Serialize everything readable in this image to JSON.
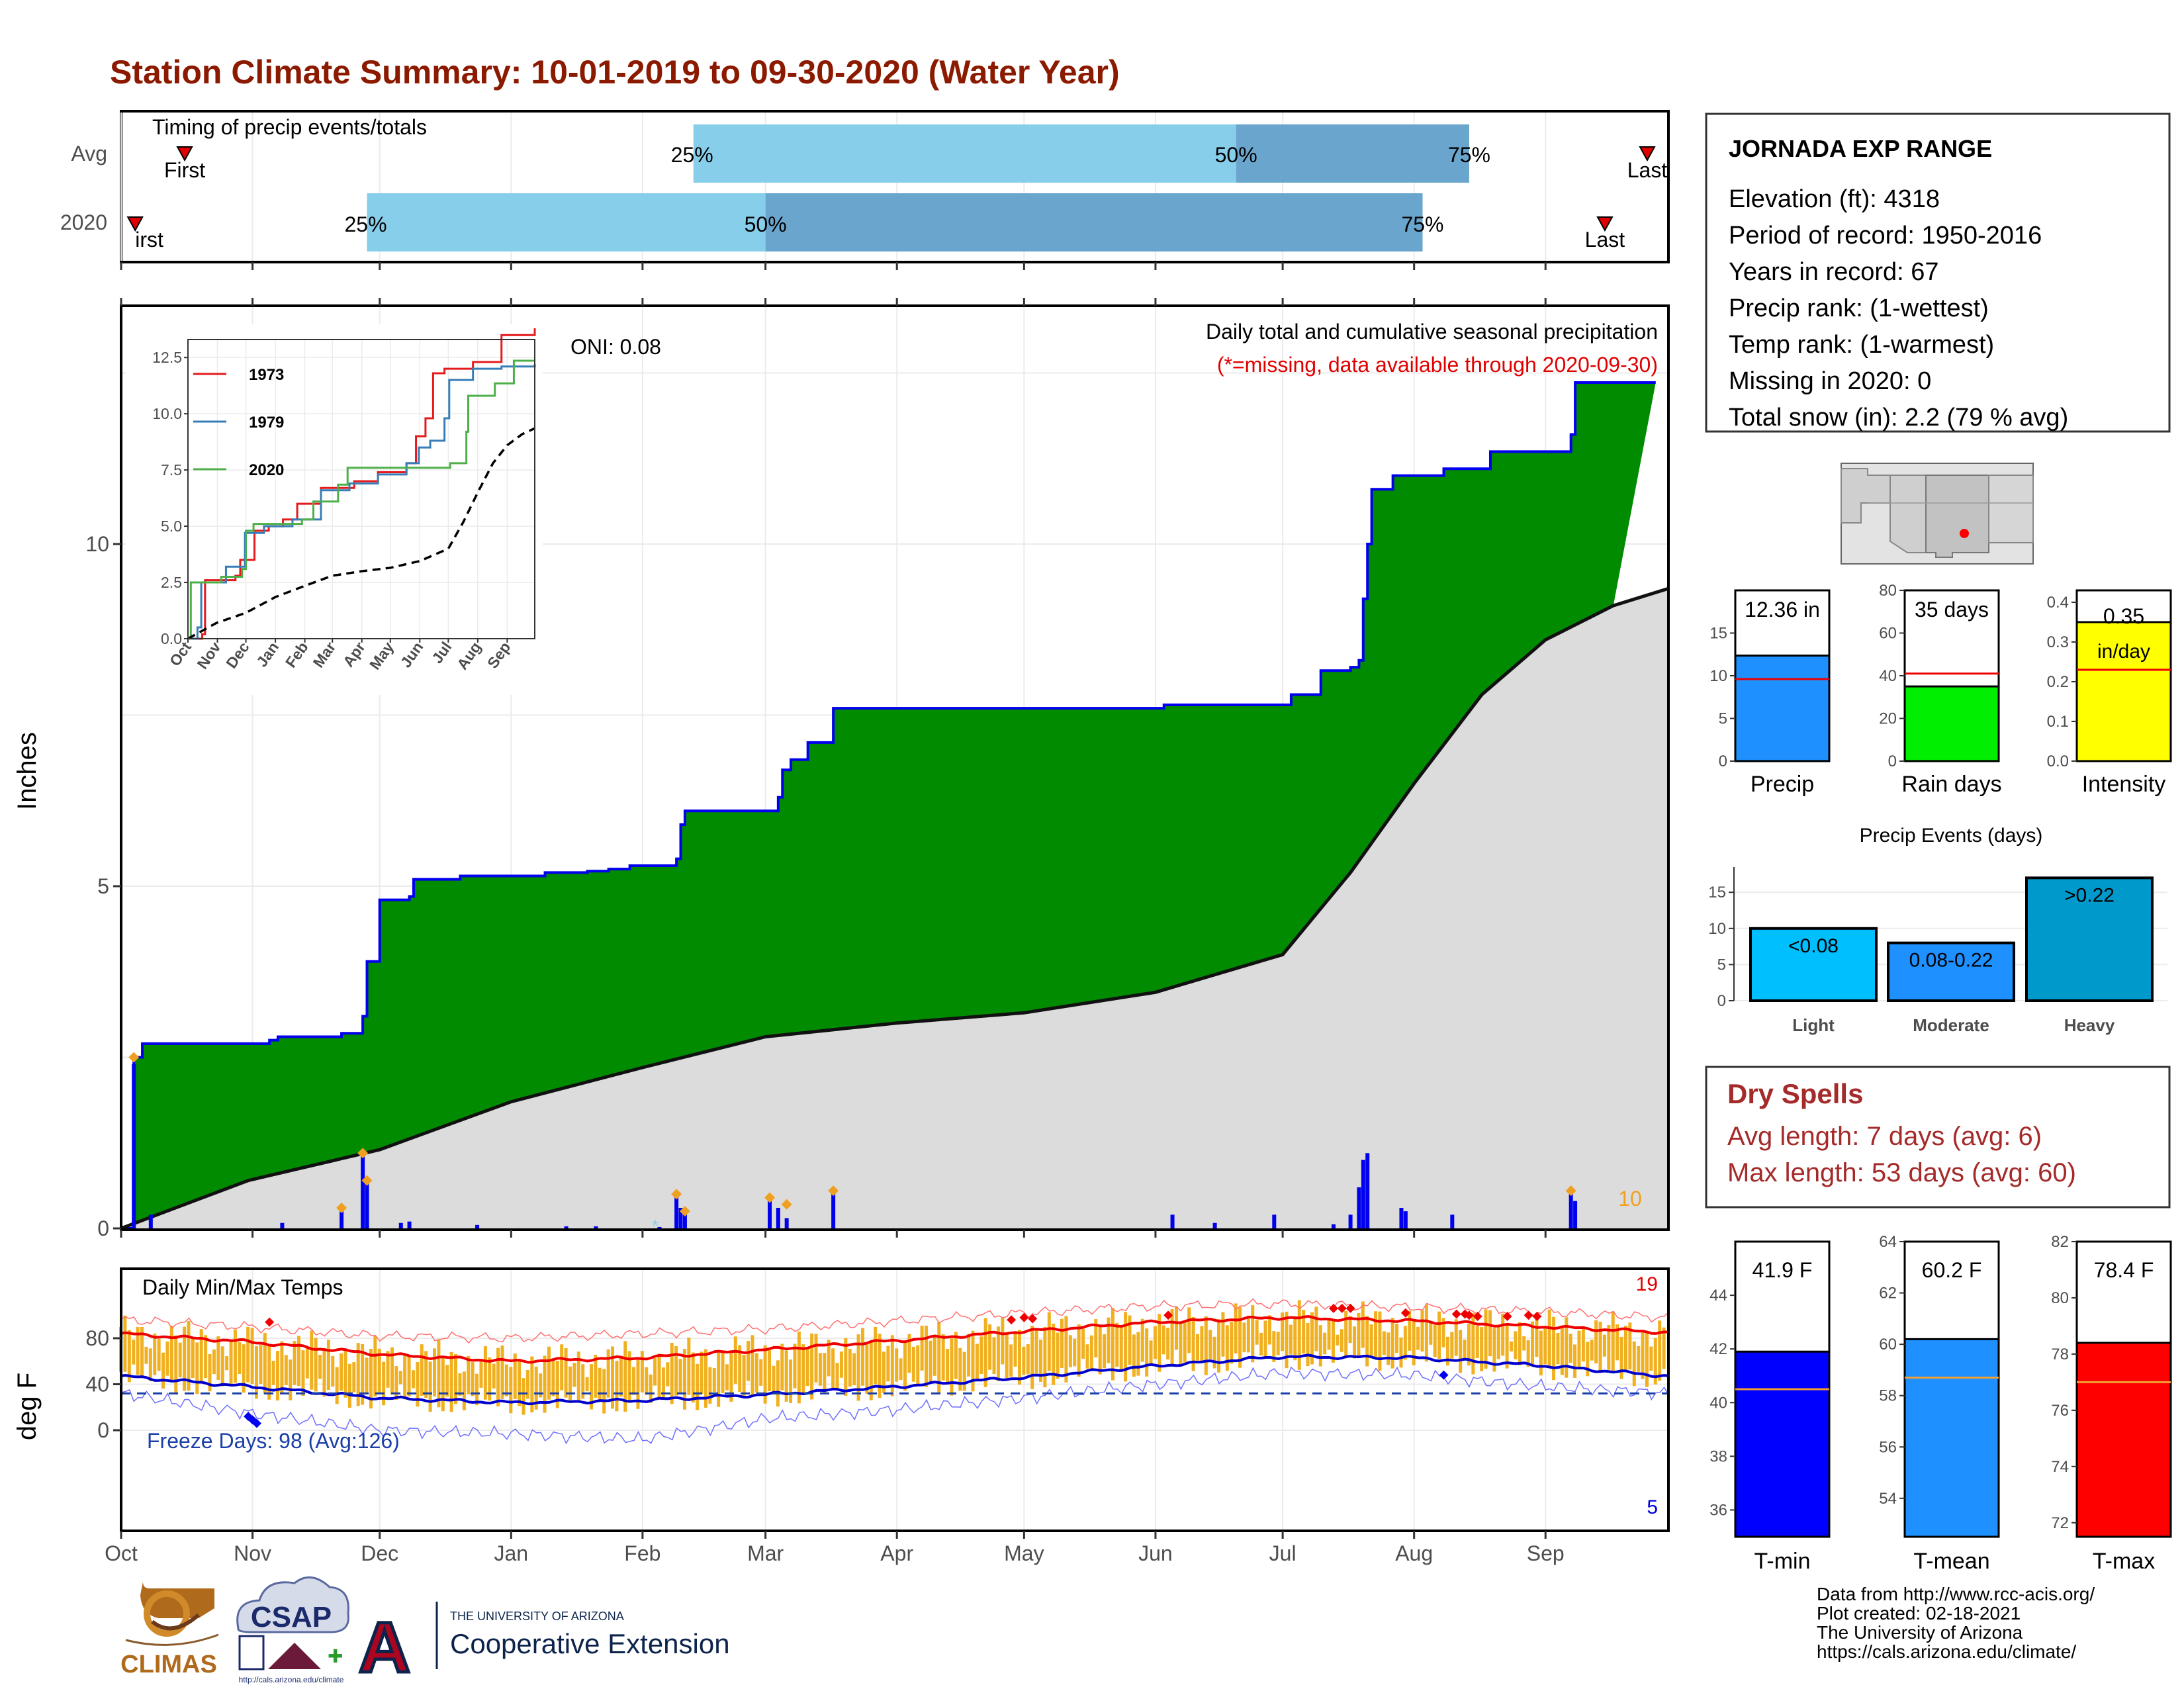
{
  "title": "Station Climate Summary: 10-01-2019 to 09-30-2020 (Water Year)",
  "months": [
    "Oct",
    "Nov",
    "Dec",
    "Jan",
    "Feb",
    "Mar",
    "Apr",
    "May",
    "Jun",
    "Jul",
    "Aug",
    "Sep"
  ],
  "timing": {
    "label": "Timing of precip events/totals",
    "rows": [
      "Avg",
      "2020"
    ],
    "first_label": "First",
    "first_label_2020": "irst",
    "last_label": "Last",
    "avg": {
      "first": 15,
      "p25": 135,
      "p50": 263,
      "p75": 318,
      "last": 360
    },
    "y2020": {
      "first": 3,
      "p25": 58,
      "p50": 152,
      "p75": 307,
      "last": 350
    },
    "pct_labels": [
      "25%",
      "50%",
      "75%"
    ]
  },
  "precip": {
    "ylabel": "Inches",
    "yticks": [
      "0",
      "5",
      "10"
    ],
    "oni": "ONI: 0.08",
    "legend_line1": "Daily total and cumulative seasonal precipitation",
    "legend_line2": "(*=missing, data available through 2020-09-30)",
    "event_count": "10",
    "cum_2020": [
      [
        0,
        0
      ],
      [
        3,
        2.5
      ],
      [
        5,
        2.7
      ],
      [
        35,
        2.75
      ],
      [
        37,
        2.8
      ],
      [
        52,
        2.85
      ],
      [
        57,
        3.1
      ],
      [
        58,
        3.9
      ],
      [
        61,
        4.8
      ],
      [
        68,
        4.85
      ],
      [
        69,
        5.1
      ],
      [
        80,
        5.15
      ],
      [
        100,
        5.2
      ],
      [
        110,
        5.22
      ],
      [
        115,
        5.25
      ],
      [
        120,
        5.3
      ],
      [
        131,
        5.4
      ],
      [
        132,
        5.9
      ],
      [
        133,
        6.1
      ],
      [
        155,
        6.3
      ],
      [
        156,
        6.7
      ],
      [
        158,
        6.85
      ],
      [
        162,
        7.1
      ],
      [
        168,
        7.6
      ],
      [
        233,
        7.6
      ],
      [
        246,
        7.65
      ],
      [
        276,
        7.8
      ],
      [
        279,
        7.8
      ],
      [
        283,
        8.15
      ],
      [
        290,
        8.2
      ],
      [
        292,
        8.3
      ],
      [
        293,
        9.2
      ],
      [
        294,
        10.0
      ],
      [
        295,
        10.8
      ],
      [
        300,
        11.0
      ],
      [
        312,
        11.1
      ],
      [
        323,
        11.35
      ],
      [
        342,
        11.6
      ],
      [
        343,
        12.36
      ],
      [
        362,
        12.36
      ]
    ],
    "avg_cum": [
      [
        0,
        0.0
      ],
      [
        30,
        0.7
      ],
      [
        61,
        1.15
      ],
      [
        92,
        1.85
      ],
      [
        123,
        2.35
      ],
      [
        152,
        2.8
      ],
      [
        183,
        3.0
      ],
      [
        213,
        3.15
      ],
      [
        244,
        3.45
      ],
      [
        274,
        4.0
      ],
      [
        290,
        5.2
      ],
      [
        305,
        6.5
      ],
      [
        321,
        7.8
      ],
      [
        336,
        8.6
      ],
      [
        352,
        9.1
      ],
      [
        365,
        9.35
      ]
    ],
    "daily": [
      [
        3,
        2.4
      ],
      [
        7,
        0.2
      ],
      [
        38,
        0.08
      ],
      [
        52,
        0.3
      ],
      [
        57,
        1.1
      ],
      [
        58,
        0.7
      ],
      [
        66,
        0.08
      ],
      [
        68,
        0.1
      ],
      [
        84,
        0.05
      ],
      [
        105,
        0.03
      ],
      [
        112,
        0.03
      ],
      [
        127,
        0.02
      ],
      [
        131,
        0.5
      ],
      [
        132,
        0.3
      ],
      [
        133,
        0.2
      ],
      [
        153,
        0.45
      ],
      [
        155,
        0.3
      ],
      [
        157,
        0.15
      ],
      [
        168,
        0.5
      ],
      [
        248,
        0.2
      ],
      [
        258,
        0.08
      ],
      [
        272,
        0.2
      ],
      [
        286,
        0.06
      ],
      [
        290,
        0.2
      ],
      [
        292,
        0.6
      ],
      [
        293,
        1.0
      ],
      [
        294,
        1.1
      ],
      [
        302,
        0.3
      ],
      [
        303,
        0.25
      ],
      [
        314,
        0.2
      ],
      [
        342,
        0.5
      ],
      [
        343,
        0.4
      ]
    ],
    "diamonds": [
      [
        3,
        2.5
      ],
      [
        57,
        1.1
      ],
      [
        58,
        0.7
      ],
      [
        52,
        0.3
      ],
      [
        131,
        0.5
      ],
      [
        133,
        0.25
      ],
      [
        153,
        0.45
      ],
      [
        157,
        0.35
      ],
      [
        168,
        0.55
      ],
      [
        342,
        0.55
      ]
    ],
    "missing_star": [
      [
        126,
        0.05
      ]
    ],
    "inset": {
      "series": [
        "1973",
        "1979",
        "2020"
      ],
      "colors": [
        "#e41a1c",
        "#377eb8",
        "#4daf4a"
      ],
      "yticks": [
        "0.0",
        "2.5",
        "5.0",
        "7.5",
        "10.0",
        "12.5"
      ],
      "xticks": [
        "Oct",
        "Nov",
        "Dec",
        "Jan",
        "Feb",
        "Mar",
        "Apr",
        "May",
        "Jun",
        "Jul",
        "Aug",
        "Sep"
      ],
      "data_1973": [
        [
          0,
          0
        ],
        [
          15,
          0.2
        ],
        [
          18,
          2.6
        ],
        [
          50,
          2.8
        ],
        [
          55,
          3.5
        ],
        [
          70,
          4.8
        ],
        [
          85,
          5.0
        ],
        [
          100,
          5.3
        ],
        [
          115,
          6.0
        ],
        [
          140,
          6.7
        ],
        [
          175,
          7.0
        ],
        [
          200,
          7.4
        ],
        [
          230,
          7.8
        ],
        [
          240,
          9.0
        ],
        [
          250,
          9.8
        ],
        [
          258,
          11.8
        ],
        [
          270,
          12.0
        ],
        [
          300,
          12.3
        ],
        [
          330,
          13.5
        ],
        [
          365,
          13.8
        ]
      ],
      "data_1979": [
        [
          0,
          0
        ],
        [
          10,
          0.5
        ],
        [
          14,
          2.5
        ],
        [
          40,
          3.2
        ],
        [
          60,
          4.7
        ],
        [
          80,
          5.0
        ],
        [
          110,
          5.3
        ],
        [
          140,
          6.6
        ],
        [
          170,
          6.9
        ],
        [
          200,
          7.3
        ],
        [
          230,
          7.8
        ],
        [
          243,
          8.5
        ],
        [
          255,
          8.8
        ],
        [
          270,
          9.8
        ],
        [
          275,
          11.5
        ],
        [
          300,
          12.0
        ],
        [
          330,
          12.1
        ],
        [
          365,
          12.2
        ]
      ],
      "data_2020": [
        [
          0,
          0
        ],
        [
          3,
          2.5
        ],
        [
          35,
          2.75
        ],
        [
          57,
          3.1
        ],
        [
          61,
          4.8
        ],
        [
          69,
          5.1
        ],
        [
          120,
          5.3
        ],
        [
          132,
          6.1
        ],
        [
          158,
          6.85
        ],
        [
          168,
          7.6
        ],
        [
          276,
          7.8
        ],
        [
          293,
          9.2
        ],
        [
          295,
          10.8
        ],
        [
          323,
          11.35
        ],
        [
          343,
          12.36
        ],
        [
          365,
          12.36
        ]
      ],
      "data_avg": [
        [
          0,
          0
        ],
        [
          30,
          0.7
        ],
        [
          61,
          1.15
        ],
        [
          92,
          1.85
        ],
        [
          123,
          2.35
        ],
        [
          152,
          2.8
        ],
        [
          183,
          3.0
        ],
        [
          213,
          3.15
        ],
        [
          244,
          3.45
        ],
        [
          274,
          4.0
        ],
        [
          290,
          5.2
        ],
        [
          305,
          6.5
        ],
        [
          321,
          7.8
        ],
        [
          336,
          8.6
        ],
        [
          352,
          9.1
        ],
        [
          365,
          9.35
        ]
      ]
    }
  },
  "temp": {
    "ylabel": "deg F",
    "yticks": [
      "0",
      "40",
      "80"
    ],
    "label": "Daily Min/Max Temps",
    "freeze": "Freeze Days: 98 (Avg:126)",
    "freeze_line": 32,
    "max_count": "19",
    "min_count": "5",
    "avg_tmax": [
      [
        0,
        84
      ],
      [
        30,
        77
      ],
      [
        61,
        66
      ],
      [
        92,
        60
      ],
      [
        123,
        63
      ],
      [
        152,
        70
      ],
      [
        183,
        78
      ],
      [
        213,
        86
      ],
      [
        244,
        94
      ],
      [
        274,
        98
      ],
      [
        305,
        95
      ],
      [
        336,
        90
      ],
      [
        365,
        85
      ]
    ],
    "avg_tmin": [
      [
        0,
        47
      ],
      [
        30,
        38
      ],
      [
        61,
        28
      ],
      [
        92,
        24
      ],
      [
        123,
        26
      ],
      [
        152,
        31
      ],
      [
        183,
        38
      ],
      [
        213,
        46
      ],
      [
        244,
        56
      ],
      [
        274,
        64
      ],
      [
        305,
        63
      ],
      [
        336,
        56
      ],
      [
        365,
        47
      ]
    ],
    "rec_max": [
      [
        0,
        96
      ],
      [
        30,
        90
      ],
      [
        61,
        82
      ],
      [
        92,
        80
      ],
      [
        123,
        84
      ],
      [
        152,
        88
      ],
      [
        183,
        95
      ],
      [
        213,
        102
      ],
      [
        244,
        108
      ],
      [
        274,
        110
      ],
      [
        305,
        107
      ],
      [
        336,
        103
      ],
      [
        365,
        98
      ]
    ],
    "rec_min": [
      [
        0,
        32
      ],
      [
        30,
        15
      ],
      [
        61,
        0
      ],
      [
        92,
        -3
      ],
      [
        123,
        -8
      ],
      [
        152,
        10
      ],
      [
        183,
        18
      ],
      [
        213,
        28
      ],
      [
        244,
        40
      ],
      [
        274,
        50
      ],
      [
        305,
        48
      ],
      [
        336,
        38
      ],
      [
        365,
        32
      ]
    ],
    "red_diamonds": [
      [
        210,
        96
      ],
      [
        213,
        98
      ],
      [
        215,
        97
      ],
      [
        35,
        94
      ],
      [
        247,
        100
      ],
      [
        286,
        106
      ],
      [
        288,
        106
      ],
      [
        290,
        106
      ],
      [
        303,
        102
      ],
      [
        315,
        101
      ],
      [
        317,
        101
      ],
      [
        318,
        100
      ],
      [
        320,
        99
      ],
      [
        327,
        99
      ],
      [
        332,
        100
      ],
      [
        334,
        99
      ]
    ],
    "blue_diamonds": [
      [
        30,
        12
      ],
      [
        31,
        9
      ],
      [
        32,
        6
      ],
      [
        312,
        48
      ]
    ]
  },
  "station": {
    "name": "JORNADA EXP RANGE",
    "lines": [
      "Elevation (ft): 4318",
      "Period of record: 1950-2016",
      "Years in record: 67",
      "Precip rank:  (1-wettest)",
      "Temp rank:  (1-warmest)",
      "Missing in 2020: 0",
      "Total snow (in): 2.2 (79 % avg)"
    ]
  },
  "mini_bars": [
    {
      "label": "Precip",
      "value_text": "12.36 in",
      "value": 12.36,
      "avg": 9.6,
      "ymax": 20,
      "yticks": [
        "0",
        "5",
        "10",
        "15"
      ],
      "tick_vals": [
        0,
        5,
        10,
        15
      ],
      "color": "#1e90ff"
    },
    {
      "label": "Rain days",
      "value_text": "35 days",
      "value": 35,
      "avg": 41,
      "ymax": 80,
      "yticks": [
        "0",
        "20",
        "40",
        "60",
        "80"
      ],
      "tick_vals": [
        0,
        20,
        40,
        60,
        80
      ],
      "color": "#00ee00"
    },
    {
      "label": "Intensity",
      "value_text": "0.35",
      "unit_text": "in/day",
      "value": 0.35,
      "avg": 0.23,
      "ymax": 0.43,
      "yticks": [
        "0.0",
        "0.1",
        "0.2",
        "0.3",
        "0.4"
      ],
      "tick_vals": [
        0,
        0.1,
        0.2,
        0.3,
        0.4
      ],
      "color": "#ffff00"
    }
  ],
  "events": {
    "title": "Precip Events (days)",
    "yticks": [
      "0",
      "5",
      "10",
      "15"
    ],
    "categories": [
      "Light",
      "Moderate",
      "Heavy"
    ],
    "labels": [
      "<0.08",
      "0.08-0.22",
      ">0.22"
    ],
    "values": [
      10,
      8,
      17
    ],
    "colors": [
      "#00bfff",
      "#1e90ff",
      "#0099cc"
    ]
  },
  "dry": {
    "title": "Dry Spells",
    "line1": "Avg length: 7 days (avg: 6)",
    "line2": "Max length: 53 days (avg: 60)"
  },
  "temp_bars": [
    {
      "label": "T-min",
      "value_text": "41.9 F",
      "value": 41.9,
      "avg": 40.5,
      "ymin": 35,
      "ymax": 46,
      "yticks": [
        "36",
        "38",
        "40",
        "42",
        "44"
      ],
      "tick_vals": [
        36,
        38,
        40,
        42,
        44
      ],
      "color": "#0000ff"
    },
    {
      "label": "T-mean",
      "value_text": "60.2 F",
      "value": 60.2,
      "avg": 58.7,
      "ymin": 52.5,
      "ymax": 64,
      "yticks": [
        "54",
        "56",
        "58",
        "60",
        "62",
        "64"
      ],
      "tick_vals": [
        54,
        56,
        58,
        60,
        62,
        64
      ],
      "color": "#1e90ff"
    },
    {
      "label": "T-max",
      "value_text": "78.4 F",
      "value": 78.4,
      "avg": 77,
      "ymin": 71.5,
      "ymax": 82,
      "yticks": [
        "72",
        "74",
        "76",
        "78",
        "80",
        "82"
      ],
      "tick_vals": [
        72,
        74,
        76,
        78,
        80,
        82
      ],
      "color": "#ff0000"
    }
  ],
  "credits": {
    "lines": [
      "Data from http://www.rcc-acis.org/",
      "Plot created: 02-18-2021",
      "The University of Arizona",
      "https://cals.arizona.edu/climate/"
    ],
    "climas": "CLIMAS",
    "csap": "CSAP",
    "csap_url": "http://cals.arizona.edu/climate",
    "ua_small": "THE UNIVERSITY OF ARIZONA",
    "ua_big": "Cooperative Extension",
    "ua_letter": "A"
  }
}
